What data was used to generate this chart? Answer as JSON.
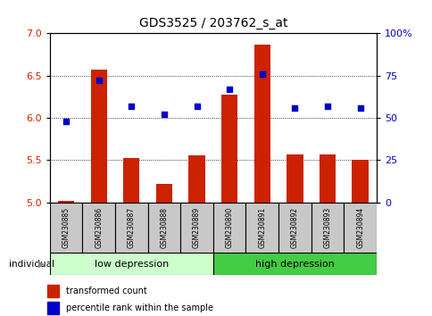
{
  "title": "GDS3525 / 203762_s_at",
  "samples": [
    "GSM230885",
    "GSM230886",
    "GSM230887",
    "GSM230888",
    "GSM230889",
    "GSM230890",
    "GSM230891",
    "GSM230892",
    "GSM230893",
    "GSM230894"
  ],
  "transformed_count": [
    5.02,
    6.57,
    5.52,
    5.22,
    5.55,
    6.27,
    6.86,
    5.57,
    5.57,
    5.5
  ],
  "percentile_rank": [
    48,
    72,
    57,
    52,
    57,
    67,
    76,
    56,
    57,
    56
  ],
  "ylim_left": [
    5.0,
    7.0
  ],
  "ylim_right": [
    0,
    100
  ],
  "yticks_left": [
    5.0,
    5.5,
    6.0,
    6.5,
    7.0
  ],
  "yticks_right": [
    0,
    25,
    50,
    75,
    100
  ],
  "bar_color": "#cc2200",
  "dot_color": "#0000cc",
  "group_low_label": "low depression",
  "group_high_label": "high depression",
  "group_low_color": "#ccffcc",
  "group_high_color": "#44cc44",
  "individual_label": "individual",
  "legend_bar_label": "transformed count",
  "legend_dot_label": "percentile rank within the sample",
  "base_value": 5.0
}
